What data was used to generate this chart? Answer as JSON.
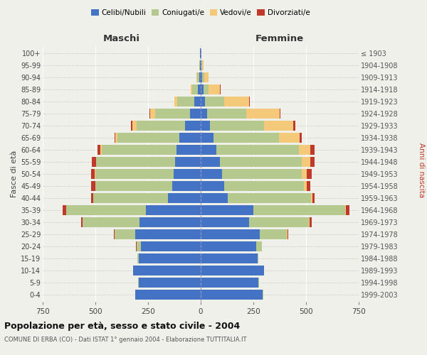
{
  "age_groups": [
    "0-4",
    "5-9",
    "10-14",
    "15-19",
    "20-24",
    "25-29",
    "30-34",
    "35-39",
    "40-44",
    "45-49",
    "50-54",
    "55-59",
    "60-64",
    "65-69",
    "70-74",
    "75-79",
    "80-84",
    "85-89",
    "90-94",
    "95-99",
    "100+"
  ],
  "birth_years": [
    "1999-2003",
    "1994-1998",
    "1989-1993",
    "1984-1988",
    "1979-1983",
    "1974-1978",
    "1969-1973",
    "1964-1968",
    "1959-1963",
    "1954-1958",
    "1949-1953",
    "1944-1948",
    "1939-1943",
    "1934-1938",
    "1929-1933",
    "1924-1928",
    "1919-1923",
    "1914-1918",
    "1909-1913",
    "1904-1908",
    "≤ 1903"
  ],
  "maschi": {
    "celibi": [
      310,
      295,
      320,
      295,
      285,
      310,
      290,
      260,
      155,
      135,
      130,
      120,
      115,
      100,
      75,
      50,
      30,
      15,
      8,
      3,
      2
    ],
    "coniugati": [
      1,
      1,
      2,
      5,
      20,
      100,
      270,
      380,
      355,
      365,
      370,
      375,
      355,
      295,
      230,
      165,
      80,
      25,
      8,
      3,
      1
    ],
    "vedovi": [
      0,
      0,
      0,
      0,
      0,
      0,
      0,
      0,
      1,
      1,
      2,
      3,
      5,
      10,
      20,
      25,
      15,
      8,
      3,
      1,
      0
    ],
    "divorziati": [
      0,
      0,
      0,
      0,
      1,
      3,
      8,
      15,
      10,
      20,
      18,
      20,
      15,
      5,
      5,
      2,
      0,
      0,
      0,
      0,
      0
    ]
  },
  "femmine": {
    "nubili": [
      295,
      275,
      300,
      270,
      265,
      280,
      230,
      250,
      130,
      110,
      100,
      90,
      75,
      60,
      45,
      30,
      20,
      12,
      8,
      4,
      2
    ],
    "coniugate": [
      1,
      1,
      2,
      5,
      25,
      130,
      285,
      435,
      395,
      380,
      380,
      390,
      390,
      310,
      255,
      185,
      90,
      25,
      8,
      3,
      1
    ],
    "vedove": [
      0,
      0,
      0,
      0,
      1,
      2,
      3,
      5,
      5,
      15,
      25,
      40,
      55,
      100,
      140,
      160,
      120,
      55,
      20,
      5,
      1
    ],
    "divorziate": [
      0,
      0,
      0,
      0,
      1,
      3,
      8,
      15,
      10,
      15,
      22,
      22,
      20,
      10,
      8,
      5,
      2,
      1,
      0,
      0,
      0
    ]
  },
  "colors": {
    "celibi": "#4472c4",
    "coniugati": "#b5c98e",
    "vedovi": "#f5c97a",
    "divorziati": "#c0392b"
  },
  "xlim": 750,
  "title": "Popolazione per età, sesso e stato civile - 2004",
  "subtitle": "COMUNE DI ERBA (CO) - Dati ISTAT 1° gennaio 2004 - Elaborazione TUTTITALIA.IT",
  "ylabel_left": "Fasce di età",
  "ylabel_right": "Anni di nascita",
  "xlabel_maschi": "Maschi",
  "xlabel_femmine": "Femmine",
  "bg_color": "#f0f0eb"
}
